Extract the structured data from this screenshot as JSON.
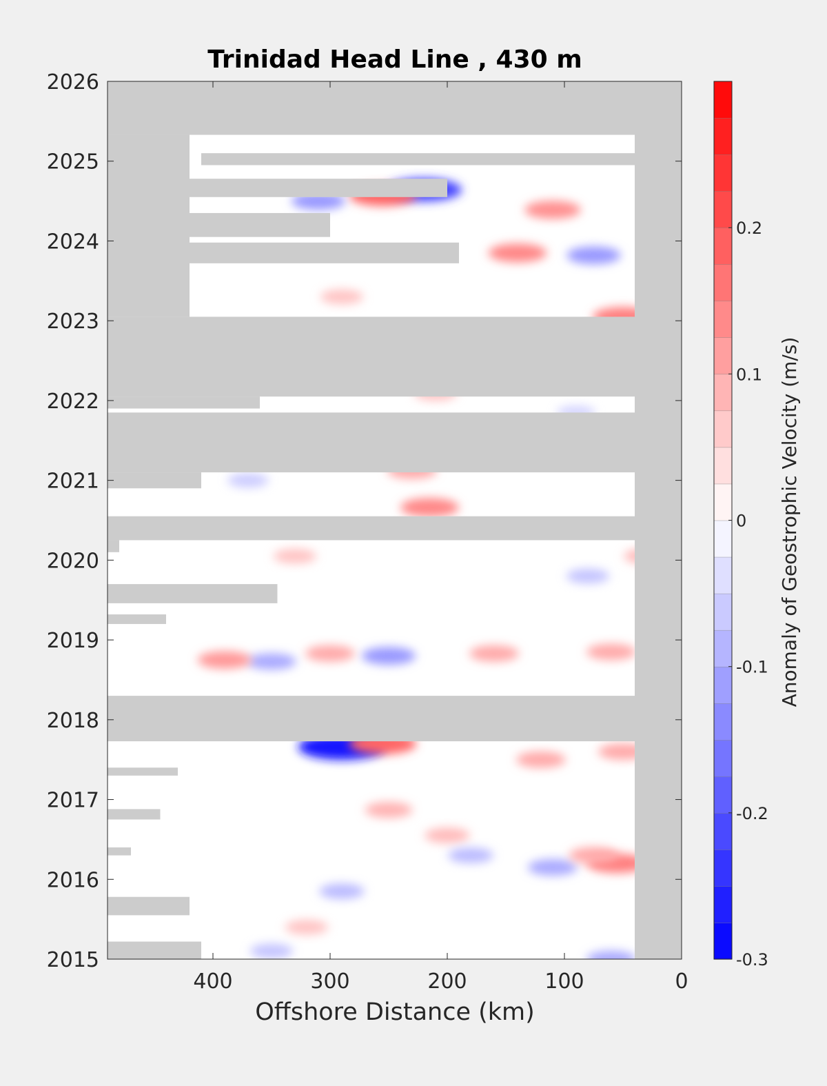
{
  "chart_data": {
    "type": "heatmap",
    "title": "Trinidad Head Line , 430 m",
    "xlabel": "Offshore Distance (km)",
    "ylabel": "",
    "xlim": [
      490,
      0
    ],
    "x_reversed": true,
    "ylim": [
      2015,
      2026
    ],
    "xticks": [
      400,
      300,
      200,
      100,
      0
    ],
    "yticks": [
      2015,
      2016,
      2017,
      2018,
      2019,
      2020,
      2021,
      2022,
      2023,
      2024,
      2025,
      2026
    ],
    "colorbar": {
      "label": "Anomaly of Geostrophic Velocity (m/s)",
      "range": [
        -0.3,
        0.3
      ],
      "ticks": [
        -0.3,
        -0.2,
        -0.1,
        0,
        0.1,
        0.2
      ],
      "levels": 24,
      "low_color": "#0000ff",
      "mid_color": "#ffffff",
      "high_color": "#ff0000"
    },
    "missing_color": "#cccccc",
    "missing_regions": [
      {
        "x": [
          490,
          0
        ],
        "y": [
          2025.33,
          2026
        ]
      },
      {
        "x": [
          40,
          0
        ],
        "y": [
          2015,
          2026
        ]
      },
      {
        "x": [
          490,
          420
        ],
        "y": [
          2023.05,
          2025.33
        ]
      },
      {
        "x": [
          410,
          40
        ],
        "y": [
          2024.95,
          2025.1
        ]
      },
      {
        "x": [
          420,
          200
        ],
        "y": [
          2024.55,
          2024.78
        ]
      },
      {
        "x": [
          420,
          300
        ],
        "y": [
          2024.05,
          2024.35
        ]
      },
      {
        "x": [
          420,
          190
        ],
        "y": [
          2023.72,
          2023.98
        ]
      },
      {
        "x": [
          490,
          0
        ],
        "y": [
          2023.05,
          2022.05
        ]
      },
      {
        "x": [
          490,
          360
        ],
        "y": [
          2021.9,
          2022.05
        ]
      },
      {
        "x": [
          490,
          40
        ],
        "y": [
          2021.1,
          2021.85
        ]
      },
      {
        "x": [
          490,
          410
        ],
        "y": [
          2020.9,
          2021.1
        ]
      },
      {
        "x": [
          490,
          40
        ],
        "y": [
          2020.25,
          2020.55
        ]
      },
      {
        "x": [
          490,
          480
        ],
        "y": [
          2020.1,
          2020.25
        ]
      },
      {
        "x": [
          490,
          345
        ],
        "y": [
          2019.46,
          2019.7
        ]
      },
      {
        "x": [
          490,
          440
        ],
        "y": [
          2019.2,
          2019.32
        ]
      },
      {
        "x": [
          490,
          40
        ],
        "y": [
          2017.73,
          2018.3
        ]
      },
      {
        "x": [
          490,
          430
        ],
        "y": [
          2017.3,
          2017.4
        ]
      },
      {
        "x": [
          490,
          445
        ],
        "y": [
          2016.75,
          2016.88
        ]
      },
      {
        "x": [
          490,
          470
        ],
        "y": [
          2016.3,
          2016.4
        ]
      },
      {
        "x": [
          490,
          420
        ],
        "y": [
          2015.55,
          2015.78
        ]
      },
      {
        "x": [
          490,
          410
        ],
        "y": [
          2015,
          2015.22
        ]
      }
    ],
    "anomalies": [
      {
        "x": 290,
        "y": 2017.66,
        "value": -0.27
      },
      {
        "x": 255,
        "y": 2017.7,
        "value": 0.18
      },
      {
        "x": 220,
        "y": 2024.64,
        "value": -0.22
      },
      {
        "x": 255,
        "y": 2024.57,
        "value": 0.18
      },
      {
        "x": 310,
        "y": 2024.5,
        "value": -0.12
      },
      {
        "x": 215,
        "y": 2020.66,
        "value": 0.14
      },
      {
        "x": 230,
        "y": 2021.12,
        "value": 0.1
      },
      {
        "x": 250,
        "y": 2018.8,
        "value": -0.12
      },
      {
        "x": 350,
        "y": 2018.73,
        "value": -0.1
      },
      {
        "x": 390,
        "y": 2018.75,
        "value": 0.12
      },
      {
        "x": 300,
        "y": 2018.83,
        "value": 0.1
      },
      {
        "x": 140,
        "y": 2023.85,
        "value": 0.14
      },
      {
        "x": 75,
        "y": 2023.82,
        "value": -0.12
      },
      {
        "x": 110,
        "y": 2024.39,
        "value": 0.13
      },
      {
        "x": 50,
        "y": 2023.05,
        "value": 0.15
      },
      {
        "x": 55,
        "y": 2016.2,
        "value": 0.15
      },
      {
        "x": 110,
        "y": 2016.15,
        "value": -0.1
      },
      {
        "x": 75,
        "y": 2016.3,
        "value": 0.1
      },
      {
        "x": 250,
        "y": 2016.87,
        "value": 0.09
      },
      {
        "x": 200,
        "y": 2016.55,
        "value": 0.08
      },
      {
        "x": 120,
        "y": 2017.5,
        "value": 0.1
      },
      {
        "x": 160,
        "y": 2018.83,
        "value": 0.1
      },
      {
        "x": 60,
        "y": 2018.85,
        "value": 0.1
      },
      {
        "x": 30,
        "y": 2020.05,
        "value": 0.08
      },
      {
        "x": 50,
        "y": 2017.6,
        "value": 0.1
      },
      {
        "x": 330,
        "y": 2020.05,
        "value": 0.07
      },
      {
        "x": 370,
        "y": 2021.0,
        "value": -0.06
      },
      {
        "x": 80,
        "y": 2019.8,
        "value": -0.07
      },
      {
        "x": 350,
        "y": 2015.1,
        "value": -0.07
      },
      {
        "x": 60,
        "y": 2015.0,
        "value": -0.1
      },
      {
        "x": 320,
        "y": 2015.4,
        "value": 0.07
      },
      {
        "x": 180,
        "y": 2016.3,
        "value": -0.08
      },
      {
        "x": 290,
        "y": 2015.85,
        "value": -0.08
      },
      {
        "x": 210,
        "y": 2022.09,
        "value": 0.07
      },
      {
        "x": 90,
        "y": 2021.85,
        "value": -0.05
      },
      {
        "x": 290,
        "y": 2023.3,
        "value": 0.07
      }
    ]
  }
}
